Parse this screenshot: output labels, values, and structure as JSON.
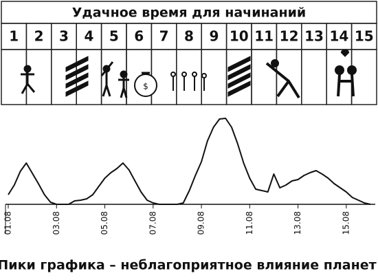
{
  "table": {
    "title": "Удачное время для начинаний",
    "days": [
      "1",
      "2",
      "3",
      "4",
      "5",
      "6",
      "7",
      "8",
      "9",
      "10",
      "11",
      "12",
      "13",
      "14",
      "15"
    ]
  },
  "chart_data": {
    "type": "line",
    "caption": "Пики графика – неблагоприятное влияние планет",
    "color": "#111111",
    "x": [
      1,
      1.25,
      1.5,
      1.75,
      2,
      2.25,
      2.5,
      2.75,
      3,
      3.25,
      3.5,
      3.75,
      4,
      4.25,
      4.5,
      4.75,
      5,
      5.25,
      5.5,
      5.75,
      6,
      6.25,
      6.5,
      6.75,
      7,
      7.25,
      7.5,
      7.75,
      8,
      8.25,
      8.5,
      8.75,
      9,
      9.25,
      9.5,
      9.75,
      10,
      10.25,
      10.5,
      10.75,
      11,
      11.25,
      11.5,
      11.75,
      12,
      12.25,
      12.5,
      12.75,
      13,
      13.25,
      13.5,
      13.75,
      14,
      14.25,
      14.5,
      14.75,
      15,
      15.25,
      15.5,
      15.75,
      16
    ],
    "values": [
      14,
      28,
      48,
      60,
      45,
      30,
      14,
      3,
      0,
      0,
      0,
      5,
      6,
      8,
      14,
      26,
      38,
      46,
      52,
      60,
      50,
      34,
      18,
      6,
      2,
      0,
      0,
      0,
      0,
      2,
      20,
      42,
      62,
      92,
      112,
      124,
      125,
      112,
      88,
      60,
      38,
      22,
      20,
      18,
      44,
      24,
      28,
      34,
      36,
      42,
      46,
      49,
      44,
      38,
      30,
      24,
      18,
      10,
      6,
      2,
      0
    ],
    "xlim": [
      1,
      16.2
    ],
    "ylim": [
      0,
      130
    ],
    "xticks": [
      {
        "value": 1,
        "label": "01.08"
      },
      {
        "value": 3,
        "label": "03.08"
      },
      {
        "value": 5,
        "label": "05.08"
      },
      {
        "value": 7,
        "label": "07.08"
      },
      {
        "value": 9,
        "label": "09.08"
      },
      {
        "value": 11,
        "label": "11.08"
      },
      {
        "value": 13,
        "label": "13.08"
      },
      {
        "value": 15,
        "label": "15.08"
      }
    ]
  }
}
